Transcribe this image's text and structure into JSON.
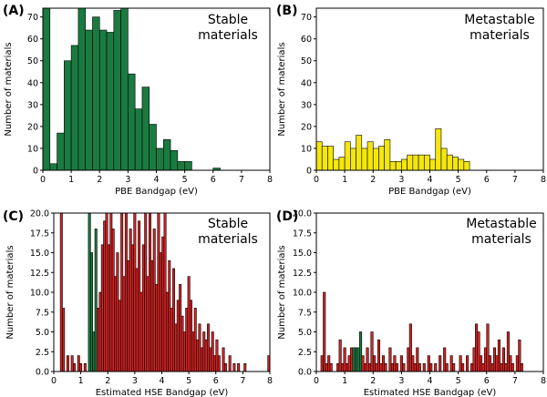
{
  "chart_data": [
    {
      "type": "bar",
      "panel_label": "(A)",
      "annotation": [
        "Stable",
        "materials"
      ],
      "bar_color": "#1a7a40",
      "bin_width": 0.25,
      "bins": [
        {
          "x": 0.0,
          "value": 74
        },
        {
          "x": 0.25,
          "value": 3
        },
        {
          "x": 0.5,
          "value": 17
        },
        {
          "x": 0.75,
          "value": 50
        },
        {
          "x": 1.0,
          "value": 57
        },
        {
          "x": 1.25,
          "value": 74
        },
        {
          "x": 1.5,
          "value": 64
        },
        {
          "x": 1.75,
          "value": 70
        },
        {
          "x": 2.0,
          "value": 64
        },
        {
          "x": 2.25,
          "value": 63
        },
        {
          "x": 2.5,
          "value": 73
        },
        {
          "x": 2.75,
          "value": 74
        },
        {
          "x": 3.0,
          "value": 44
        },
        {
          "x": 3.25,
          "value": 28
        },
        {
          "x": 3.5,
          "value": 38
        },
        {
          "x": 3.75,
          "value": 21
        },
        {
          "x": 4.0,
          "value": 10
        },
        {
          "x": 4.25,
          "value": 14
        },
        {
          "x": 4.5,
          "value": 9
        },
        {
          "x": 4.75,
          "value": 4
        },
        {
          "x": 5.0,
          "value": 4
        },
        {
          "x": 5.25,
          "value": 0
        },
        {
          "x": 5.5,
          "value": 0
        },
        {
          "x": 5.75,
          "value": 0
        },
        {
          "x": 6.0,
          "value": 1
        }
      ],
      "xlabel": "PBE Bandgap (eV)",
      "ylabel": "Number of materials",
      "xlim": [
        0,
        8
      ],
      "ylim": [
        0,
        74
      ],
      "xticks": [
        "0",
        "1",
        "2",
        "3",
        "4",
        "5",
        "6",
        "7",
        "8"
      ],
      "yticks": [
        "0",
        "10",
        "20",
        "30",
        "40",
        "50",
        "60",
        "70"
      ],
      "ytick_values": [
        0,
        10,
        20,
        30,
        40,
        50,
        60,
        70
      ]
    },
    {
      "type": "bar",
      "panel_label": "(B)",
      "annotation": [
        "Metastable",
        "materials"
      ],
      "bar_color": "#f5e60d",
      "bin_width": 0.2,
      "bins": [
        {
          "x": 0.0,
          "value": 13
        },
        {
          "x": 0.2,
          "value": 11
        },
        {
          "x": 0.4,
          "value": 11
        },
        {
          "x": 0.6,
          "value": 5
        },
        {
          "x": 0.8,
          "value": 6
        },
        {
          "x": 1.0,
          "value": 13
        },
        {
          "x": 1.2,
          "value": 10
        },
        {
          "x": 1.4,
          "value": 16
        },
        {
          "x": 1.6,
          "value": 10
        },
        {
          "x": 1.8,
          "value": 13
        },
        {
          "x": 2.0,
          "value": 10
        },
        {
          "x": 2.2,
          "value": 11
        },
        {
          "x": 2.4,
          "value": 14
        },
        {
          "x": 2.6,
          "value": 4
        },
        {
          "x": 2.8,
          "value": 4
        },
        {
          "x": 3.0,
          "value": 5
        },
        {
          "x": 3.2,
          "value": 7
        },
        {
          "x": 3.4,
          "value": 7
        },
        {
          "x": 3.6,
          "value": 7
        },
        {
          "x": 3.8,
          "value": 7
        },
        {
          "x": 4.0,
          "value": 5
        },
        {
          "x": 4.2,
          "value": 19
        },
        {
          "x": 4.4,
          "value": 10
        },
        {
          "x": 4.6,
          "value": 7
        },
        {
          "x": 4.8,
          "value": 6
        },
        {
          "x": 5.0,
          "value": 5
        },
        {
          "x": 5.2,
          "value": 4
        },
        {
          "x": 5.4,
          "value": 0
        }
      ],
      "xlabel": "PBE Bandgap (eV)",
      "ylabel": "Number of materials",
      "xlim": [
        0,
        8
      ],
      "ylim": [
        0,
        74
      ],
      "xticks": [
        "0",
        "1",
        "2",
        "3",
        "4",
        "5",
        "6",
        "7",
        "8"
      ],
      "yticks": [
        "0",
        "10",
        "20",
        "30",
        "40",
        "50",
        "60",
        "70"
      ],
      "ytick_values": [
        0,
        10,
        20,
        30,
        40,
        50,
        60,
        70
      ]
    },
    {
      "type": "bar",
      "panel_label": "(C)",
      "annotation": [
        "Stable",
        "materials"
      ],
      "bar_color": "#d42424",
      "highlight_color": "#1a7a40",
      "bin_width": 0.08,
      "bins": [
        {
          "x": 0.24,
          "value": 20
        },
        {
          "x": 0.32,
          "value": 8
        },
        {
          "x": 0.4,
          "value": 0
        },
        {
          "x": 0.48,
          "value": 2
        },
        {
          "x": 0.64,
          "value": 2
        },
        {
          "x": 0.72,
          "value": 1
        },
        {
          "x": 0.88,
          "value": 2
        },
        {
          "x": 0.96,
          "value": 1
        },
        {
          "x": 1.12,
          "value": 1
        },
        {
          "x": 1.28,
          "value": 20,
          "highlight": true
        },
        {
          "x": 1.36,
          "value": 15,
          "highlight": true
        },
        {
          "x": 1.44,
          "value": 5,
          "highlight": true
        },
        {
          "x": 1.52,
          "value": 18,
          "highlight": true
        },
        {
          "x": 1.6,
          "value": 8
        },
        {
          "x": 1.68,
          "value": 10
        },
        {
          "x": 1.76,
          "value": 16
        },
        {
          "x": 1.84,
          "value": 19
        },
        {
          "x": 1.92,
          "value": 20
        },
        {
          "x": 2.0,
          "value": 16
        },
        {
          "x": 2.08,
          "value": 20
        },
        {
          "x": 2.16,
          "value": 18
        },
        {
          "x": 2.24,
          "value": 12
        },
        {
          "x": 2.32,
          "value": 15
        },
        {
          "x": 2.4,
          "value": 9
        },
        {
          "x": 2.48,
          "value": 20
        },
        {
          "x": 2.56,
          "value": 12
        },
        {
          "x": 2.64,
          "value": 20
        },
        {
          "x": 2.72,
          "value": 14
        },
        {
          "x": 2.8,
          "value": 18
        },
        {
          "x": 2.88,
          "value": 16
        },
        {
          "x": 2.96,
          "value": 20
        },
        {
          "x": 3.04,
          "value": 13
        },
        {
          "x": 3.12,
          "value": 19
        },
        {
          "x": 3.2,
          "value": 10
        },
        {
          "x": 3.28,
          "value": 16
        },
        {
          "x": 3.36,
          "value": 20
        },
        {
          "x": 3.44,
          "value": 12
        },
        {
          "x": 3.52,
          "value": 20
        },
        {
          "x": 3.6,
          "value": 14
        },
        {
          "x": 3.68,
          "value": 18
        },
        {
          "x": 3.76,
          "value": 11
        },
        {
          "x": 3.84,
          "value": 20
        },
        {
          "x": 3.92,
          "value": 15
        },
        {
          "x": 4.0,
          "value": 17
        },
        {
          "x": 4.08,
          "value": 20
        },
        {
          "x": 4.16,
          "value": 10
        },
        {
          "x": 4.24,
          "value": 14
        },
        {
          "x": 4.32,
          "value": 8
        },
        {
          "x": 4.4,
          "value": 13
        },
        {
          "x": 4.48,
          "value": 6
        },
        {
          "x": 4.56,
          "value": 9
        },
        {
          "x": 4.64,
          "value": 11
        },
        {
          "x": 4.72,
          "value": 7
        },
        {
          "x": 4.8,
          "value": 5
        },
        {
          "x": 4.88,
          "value": 8
        },
        {
          "x": 4.96,
          "value": 12
        },
        {
          "x": 5.04,
          "value": 9
        },
        {
          "x": 5.12,
          "value": 5
        },
        {
          "x": 5.2,
          "value": 8
        },
        {
          "x": 5.28,
          "value": 4
        },
        {
          "x": 5.36,
          "value": 6
        },
        {
          "x": 5.44,
          "value": 3
        },
        {
          "x": 5.52,
          "value": 5
        },
        {
          "x": 5.6,
          "value": 4
        },
        {
          "x": 5.68,
          "value": 6
        },
        {
          "x": 5.76,
          "value": 3
        },
        {
          "x": 5.84,
          "value": 5
        },
        {
          "x": 5.92,
          "value": 2
        },
        {
          "x": 6.0,
          "value": 4
        },
        {
          "x": 6.08,
          "value": 2
        },
        {
          "x": 6.24,
          "value": 3
        },
        {
          "x": 6.32,
          "value": 1
        },
        {
          "x": 6.48,
          "value": 2
        },
        {
          "x": 6.64,
          "value": 1
        },
        {
          "x": 6.8,
          "value": 1
        },
        {
          "x": 7.04,
          "value": 1
        },
        {
          "x": 7.92,
          "value": 2
        }
      ],
      "xlabel": "Estimated HSE Bandgap (eV)",
      "ylabel": "Number of materials",
      "xlim": [
        0,
        8
      ],
      "ylim": [
        0,
        20
      ],
      "xticks": [
        "0",
        "1",
        "2",
        "3",
        "4",
        "5",
        "6",
        "7",
        "8"
      ],
      "yticks": [
        "0.0",
        "2.5",
        "5.0",
        "7.5",
        "10.0",
        "12.5",
        "15.0",
        "17.5",
        "20.0"
      ],
      "ytick_values": [
        0,
        2.5,
        5,
        7.5,
        10,
        12.5,
        15,
        17.5,
        20
      ]
    },
    {
      "type": "bar",
      "panel_label": "(D)",
      "annotation": [
        "Metastable",
        "materials"
      ],
      "bar_color": "#d42424",
      "highlight_color": "#1a7a40",
      "bin_width": 0.08,
      "bins": [
        {
          "x": 0.16,
          "value": 2
        },
        {
          "x": 0.24,
          "value": 10
        },
        {
          "x": 0.32,
          "value": 1
        },
        {
          "x": 0.4,
          "value": 2
        },
        {
          "x": 0.48,
          "value": 1
        },
        {
          "x": 0.72,
          "value": 1
        },
        {
          "x": 0.8,
          "value": 4
        },
        {
          "x": 0.88,
          "value": 1
        },
        {
          "x": 0.96,
          "value": 3
        },
        {
          "x": 1.04,
          "value": 1
        },
        {
          "x": 1.12,
          "value": 2
        },
        {
          "x": 1.2,
          "value": 3
        },
        {
          "x": 1.28,
          "value": 3,
          "highlight": true
        },
        {
          "x": 1.36,
          "value": 3,
          "highlight": true
        },
        {
          "x": 1.44,
          "value": 3,
          "highlight": true
        },
        {
          "x": 1.52,
          "value": 5,
          "highlight": true
        },
        {
          "x": 1.6,
          "value": 2
        },
        {
          "x": 1.68,
          "value": 1
        },
        {
          "x": 1.76,
          "value": 3
        },
        {
          "x": 1.84,
          "value": 1
        },
        {
          "x": 1.92,
          "value": 5
        },
        {
          "x": 2.0,
          "value": 2
        },
        {
          "x": 2.08,
          "value": 1
        },
        {
          "x": 2.16,
          "value": 4
        },
        {
          "x": 2.24,
          "value": 1
        },
        {
          "x": 2.32,
          "value": 2
        },
        {
          "x": 2.4,
          "value": 1
        },
        {
          "x": 2.56,
          "value": 3
        },
        {
          "x": 2.64,
          "value": 1
        },
        {
          "x": 2.72,
          "value": 2
        },
        {
          "x": 2.8,
          "value": 1
        },
        {
          "x": 2.96,
          "value": 2
        },
        {
          "x": 3.04,
          "value": 1
        },
        {
          "x": 3.2,
          "value": 3
        },
        {
          "x": 3.28,
          "value": 6
        },
        {
          "x": 3.36,
          "value": 2
        },
        {
          "x": 3.44,
          "value": 1
        },
        {
          "x": 3.52,
          "value": 3
        },
        {
          "x": 3.6,
          "value": 1
        },
        {
          "x": 3.76,
          "value": 1
        },
        {
          "x": 3.92,
          "value": 2
        },
        {
          "x": 4.0,
          "value": 1
        },
        {
          "x": 4.16,
          "value": 1
        },
        {
          "x": 4.32,
          "value": 2
        },
        {
          "x": 4.48,
          "value": 3
        },
        {
          "x": 4.56,
          "value": 1
        },
        {
          "x": 4.72,
          "value": 2
        },
        {
          "x": 4.8,
          "value": 1
        },
        {
          "x": 5.04,
          "value": 2
        },
        {
          "x": 5.12,
          "value": 1
        },
        {
          "x": 5.28,
          "value": 2
        },
        {
          "x": 5.44,
          "value": 1
        },
        {
          "x": 5.52,
          "value": 3
        },
        {
          "x": 5.6,
          "value": 6
        },
        {
          "x": 5.68,
          "value": 5
        },
        {
          "x": 5.76,
          "value": 2
        },
        {
          "x": 5.84,
          "value": 1
        },
        {
          "x": 5.92,
          "value": 3
        },
        {
          "x": 6.0,
          "value": 6
        },
        {
          "x": 6.08,
          "value": 2
        },
        {
          "x": 6.16,
          "value": 1
        },
        {
          "x": 6.24,
          "value": 3
        },
        {
          "x": 6.32,
          "value": 2
        },
        {
          "x": 6.4,
          "value": 4
        },
        {
          "x": 6.48,
          "value": 1
        },
        {
          "x": 6.56,
          "value": 3
        },
        {
          "x": 6.64,
          "value": 1
        },
        {
          "x": 6.72,
          "value": 5
        },
        {
          "x": 6.8,
          "value": 2
        },
        {
          "x": 6.88,
          "value": 1
        },
        {
          "x": 7.04,
          "value": 2
        },
        {
          "x": 7.12,
          "value": 4
        },
        {
          "x": 7.2,
          "value": 1
        }
      ],
      "xlabel": "Estimated HSE Bandgap (eV)",
      "ylabel": "Number of materials",
      "xlim": [
        0,
        8
      ],
      "ylim": [
        0,
        20
      ],
      "xticks": [
        "0",
        "1",
        "2",
        "3",
        "4",
        "5",
        "6",
        "7",
        "8"
      ],
      "yticks": [
        "0.0",
        "2.5",
        "5.0",
        "7.5",
        "10.0",
        "12.5",
        "15.0",
        "17.5",
        "20.0"
      ],
      "ytick_values": [
        0,
        2.5,
        5,
        7.5,
        10,
        12.5,
        15,
        17.5,
        20
      ]
    }
  ]
}
